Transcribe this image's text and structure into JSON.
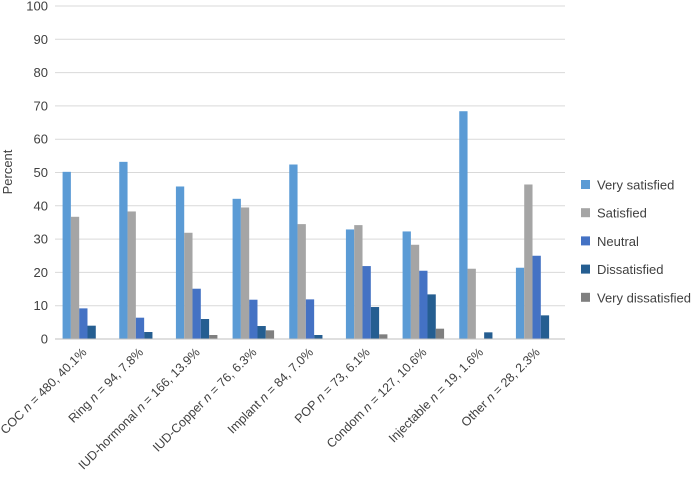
{
  "chart_data": {
    "type": "bar",
    "ylabel": "Percent",
    "ylim": [
      0,
      100
    ],
    "yticks": [
      0,
      10,
      20,
      30,
      40,
      50,
      60,
      70,
      80,
      90,
      100
    ],
    "grid": true,
    "legend_position": "right",
    "categories": [
      {
        "name": "COC",
        "n": "480",
        "pct": "40.1%"
      },
      {
        "name": "Ring",
        "n": "94",
        "pct": "7.8%"
      },
      {
        "name": "IUD-hormonal",
        "n": "166",
        "pct": "13.9%"
      },
      {
        "name": "IUD-Copper",
        "n": "76",
        "pct": "6.3%"
      },
      {
        "name": "Implant",
        "n": "84",
        "pct": "7.0%"
      },
      {
        "name": "POP",
        "n": "73",
        "pct": "6.1%"
      },
      {
        "name": "Condom",
        "n": "127",
        "pct": "10.6%"
      },
      {
        "name": "Injectable",
        "n": "19",
        "pct": "1.6%"
      },
      {
        "name": "Other",
        "n": "28",
        "pct": "2.3%"
      }
    ],
    "series": [
      {
        "name": "Very satisfied",
        "color": "#5b9bd5",
        "values": [
          50.2,
          53.2,
          45.8,
          42.1,
          52.4,
          32.9,
          32.3,
          68.4,
          21.4
        ]
      },
      {
        "name": "Satisfied",
        "color": "#a5a5a5",
        "values": [
          36.7,
          38.3,
          31.9,
          39.5,
          34.5,
          34.2,
          28.3,
          21.1,
          46.4
        ]
      },
      {
        "name": "Neutral",
        "color": "#4472c4",
        "values": [
          9.2,
          6.4,
          15.1,
          11.8,
          11.9,
          21.9,
          20.5,
          0,
          25.0
        ]
      },
      {
        "name": "Dissatisfied",
        "color": "#255e91",
        "values": [
          4.0,
          2.1,
          6.0,
          3.9,
          1.2,
          9.6,
          13.4,
          2.0,
          7.1
        ]
      },
      {
        "name": "Very dissatisfied",
        "color": "#7f7f7f",
        "values": [
          0,
          0,
          1.2,
          2.6,
          0,
          1.4,
          3.1,
          0,
          0
        ]
      }
    ]
  }
}
